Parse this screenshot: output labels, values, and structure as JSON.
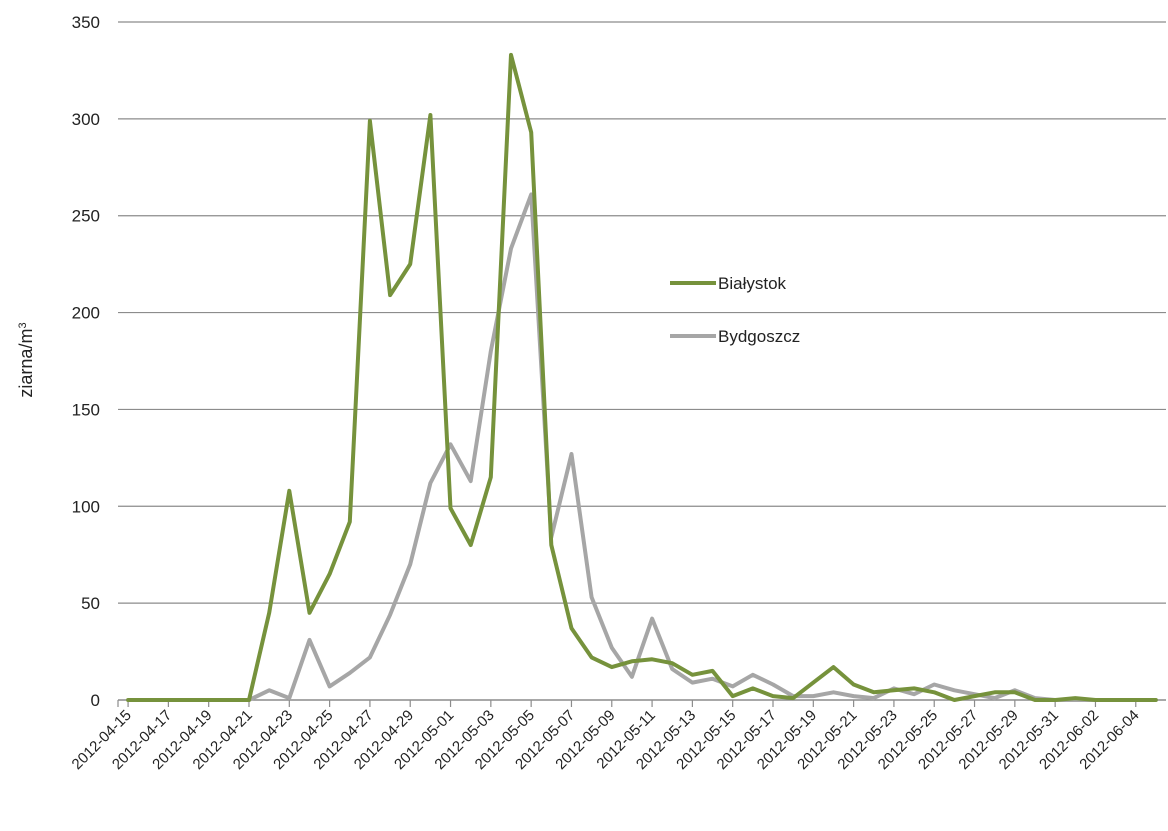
{
  "chart_data": {
    "type": "line",
    "title": "",
    "xlabel": "",
    "ylabel": "ziarna/m",
    "ylabel_sup": "3",
    "ylim": [
      0,
      350
    ],
    "yticks": [
      0,
      50,
      100,
      150,
      200,
      250,
      300,
      350
    ],
    "grid": true,
    "legend_position": "center-right",
    "x_start": "2012-04-15",
    "x_end": "2012-06-05",
    "x_tick_labels": [
      "2012-04-15",
      "2012-04-17",
      "2012-04-19",
      "2012-04-21",
      "2012-04-23",
      "2012-04-25",
      "2012-04-27",
      "2012-04-29",
      "2012-05-01",
      "2012-05-03",
      "2012-05-05",
      "2012-05-07",
      "2012-05-09",
      "2012-05-11",
      "2012-05-13",
      "2012-05-15",
      "2012-05-17",
      "2012-05-19",
      "2012-05-21",
      "2012-05-23",
      "2012-05-25",
      "2012-05-27",
      "2012-05-29",
      "2012-05-31",
      "2012-06-02",
      "2012-06-04"
    ],
    "series": [
      {
        "name": "Białystok",
        "color": "#76923c",
        "points": [
          [
            "2012-04-15",
            0
          ],
          [
            "2012-04-16",
            0
          ],
          [
            "2012-04-17",
            0
          ],
          [
            "2012-04-18",
            0
          ],
          [
            "2012-04-19",
            0
          ],
          [
            "2012-04-20",
            0
          ],
          [
            "2012-04-21",
            0
          ],
          [
            "2012-04-22",
            45
          ],
          [
            "2012-04-23",
            108
          ],
          [
            "2012-04-24",
            45
          ],
          [
            "2012-04-25",
            65
          ],
          [
            "2012-04-26",
            92
          ],
          [
            "2012-04-27",
            299
          ],
          [
            "2012-04-28",
            209
          ],
          [
            "2012-04-29",
            225
          ],
          [
            "2012-04-30",
            302
          ],
          [
            "2012-05-01",
            99
          ],
          [
            "2012-05-02",
            80
          ],
          [
            "2012-05-03",
            115
          ],
          [
            "2012-05-04",
            333
          ],
          [
            "2012-05-05",
            293
          ],
          [
            "2012-05-06",
            80
          ],
          [
            "2012-05-07",
            37
          ],
          [
            "2012-05-08",
            22
          ],
          [
            "2012-05-09",
            17
          ],
          [
            "2012-05-10",
            20
          ],
          [
            "2012-05-11",
            21
          ],
          [
            "2012-05-12",
            19
          ],
          [
            "2012-05-13",
            13
          ],
          [
            "2012-05-14",
            15
          ],
          [
            "2012-05-15",
            2
          ],
          [
            "2012-05-16",
            6
          ],
          [
            "2012-05-17",
            2
          ],
          [
            "2012-05-18",
            1
          ],
          [
            "2012-05-19",
            9
          ],
          [
            "2012-05-20",
            17
          ],
          [
            "2012-05-21",
            8
          ],
          [
            "2012-05-22",
            4
          ],
          [
            "2012-05-23",
            5
          ],
          [
            "2012-05-24",
            6
          ],
          [
            "2012-05-25",
            4
          ],
          [
            "2012-05-26",
            0
          ],
          [
            "2012-05-27",
            2
          ],
          [
            "2012-05-28",
            4
          ],
          [
            "2012-05-29",
            4
          ],
          [
            "2012-05-30",
            0
          ],
          [
            "2012-05-31",
            0
          ],
          [
            "2012-06-01",
            1
          ],
          [
            "2012-06-02",
            0
          ],
          [
            "2012-06-03",
            0
          ],
          [
            "2012-06-04",
            0
          ],
          [
            "2012-06-05",
            0
          ]
        ]
      },
      {
        "name": "Bydgoszcz",
        "color": "#a6a6a6",
        "points": [
          [
            "2012-04-20",
            0
          ],
          [
            "2012-04-21",
            0
          ],
          [
            "2012-04-22",
            5
          ],
          [
            "2012-04-23",
            1
          ],
          [
            "2012-04-24",
            31
          ],
          [
            "2012-04-25",
            7
          ],
          [
            "2012-04-26",
            14
          ],
          [
            "2012-04-27",
            22
          ],
          [
            "2012-04-28",
            44
          ],
          [
            "2012-04-29",
            70
          ],
          [
            "2012-04-30",
            112
          ],
          [
            "2012-05-01",
            132
          ],
          [
            "2012-05-02",
            113
          ],
          [
            "2012-05-03",
            180
          ],
          [
            "2012-05-04",
            233
          ],
          [
            "2012-05-05",
            261
          ],
          [
            "2012-05-06",
            84
          ],
          [
            "2012-05-07",
            127
          ],
          [
            "2012-05-08",
            53
          ],
          [
            "2012-05-09",
            27
          ],
          [
            "2012-05-10",
            12
          ],
          [
            "2012-05-11",
            42
          ],
          [
            "2012-05-12",
            16
          ],
          [
            "2012-05-13",
            9
          ],
          [
            "2012-05-14",
            11
          ],
          [
            "2012-05-15",
            7
          ],
          [
            "2012-05-16",
            13
          ],
          [
            "2012-05-17",
            8
          ],
          [
            "2012-05-18",
            2
          ],
          [
            "2012-05-19",
            2
          ],
          [
            "2012-05-20",
            4
          ],
          [
            "2012-05-21",
            2
          ],
          [
            "2012-05-22",
            1
          ],
          [
            "2012-05-23",
            6
          ],
          [
            "2012-05-24",
            3
          ],
          [
            "2012-05-25",
            8
          ],
          [
            "2012-05-26",
            5
          ],
          [
            "2012-05-27",
            3
          ],
          [
            "2012-05-28",
            1
          ],
          [
            "2012-05-29",
            5
          ],
          [
            "2012-05-30",
            1
          ],
          [
            "2012-05-31",
            0
          ],
          [
            "2012-06-01",
            0
          ],
          [
            "2012-06-02",
            0
          ],
          [
            "2012-06-03",
            0
          ]
        ]
      }
    ]
  }
}
